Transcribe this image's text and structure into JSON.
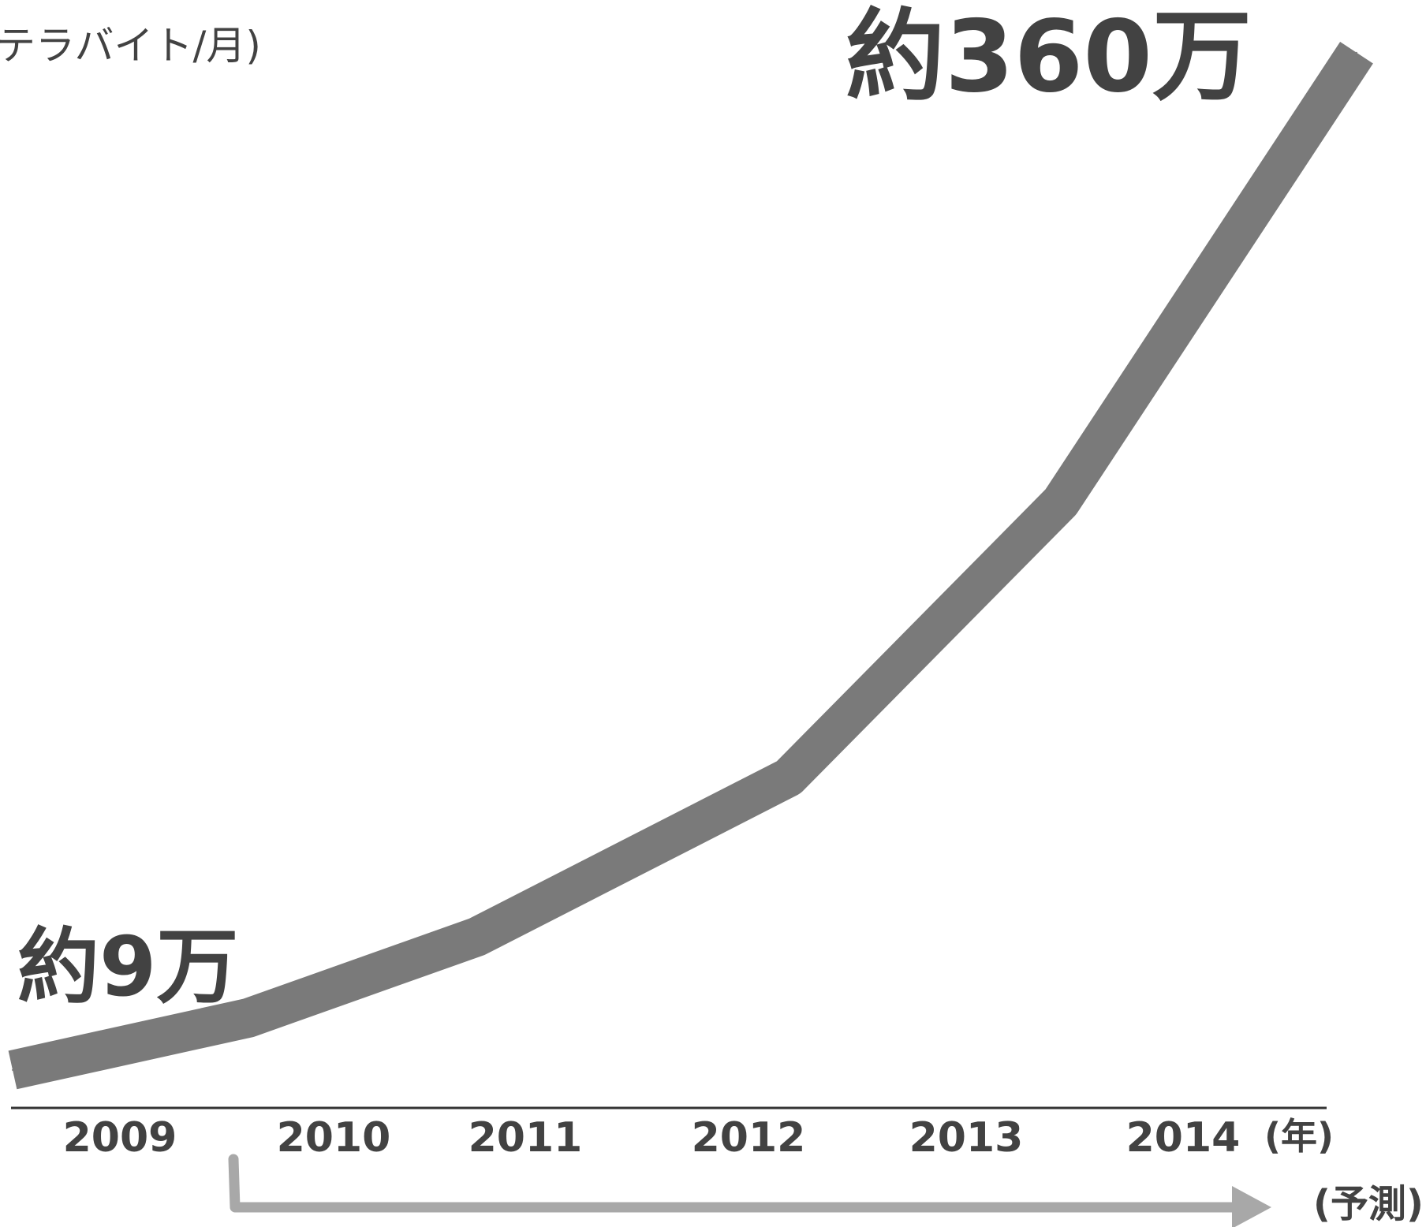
{
  "chart_data": {
    "type": "line",
    "ylabel": "テラバイト/月)",
    "x_unit": "(年)",
    "categories": [
      "2009",
      "2010",
      "2011",
      "2012",
      "2013",
      "2014"
    ],
    "series": [
      {
        "values": [
          90000,
          270000,
          550000,
          1100000,
          2050000,
          3600000
        ]
      }
    ],
    "ylim": [
      0,
      3700000
    ],
    "grid": false,
    "line_color": "#7a7a7a",
    "annotations": [
      {
        "text": "約9万",
        "target": "2009"
      },
      {
        "text": "約360万",
        "target": "2014"
      }
    ],
    "forecast": {
      "label": "(予測)",
      "from": "2010",
      "color": "#a8a8a8"
    }
  }
}
